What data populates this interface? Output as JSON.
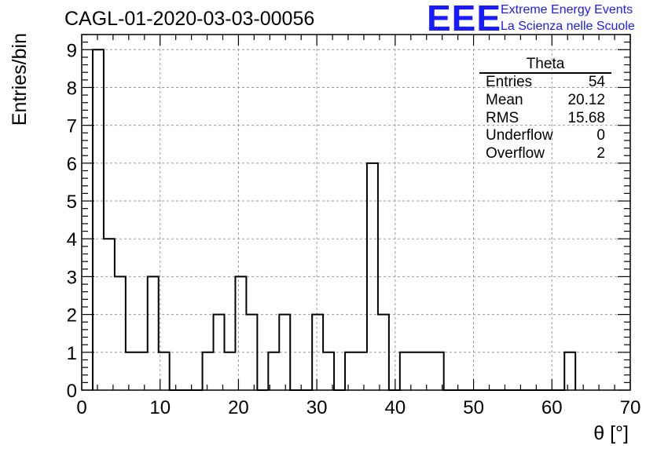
{
  "header": {
    "title": "CAGL-01-2020-03-03-00056",
    "logo_mark": "EEE",
    "logo_line1": "Extreme Energy Events",
    "logo_line2": "La Scienza nelle Scuole",
    "logo_color": "#1a1aff"
  },
  "stats_box": {
    "title": "Theta",
    "rows": [
      {
        "label": "Entries",
        "value": "54"
      },
      {
        "label": "Mean",
        "value": "20.12"
      },
      {
        "label": "RMS",
        "value": "15.68"
      },
      {
        "label": "Underflow",
        "value": "0"
      },
      {
        "label": "Overflow",
        "value": "2"
      }
    ]
  },
  "chart_data": {
    "type": "histogram",
    "title": "CAGL-01-2020-03-03-00056",
    "xlabel": "θ [°]",
    "ylabel": "Entries/bin",
    "xlim": [
      0,
      70
    ],
    "ylim": [
      0,
      9.4
    ],
    "x_ticks": [
      0,
      10,
      20,
      30,
      40,
      50,
      60,
      70
    ],
    "y_ticks": [
      0,
      1,
      2,
      3,
      4,
      5,
      6,
      7,
      8,
      9
    ],
    "grid": true,
    "bin_edges": [
      1.4,
      2.8,
      4.2,
      5.6,
      7.0,
      8.4,
      9.8,
      11.2,
      12.6,
      14.0,
      15.4,
      16.8,
      18.2,
      19.6,
      21.0,
      22.4,
      23.8,
      25.2,
      26.6,
      28.0,
      29.4,
      30.8,
      32.2,
      33.6,
      35.0,
      36.4,
      37.8,
      39.2,
      40.6,
      42.0,
      43.4,
      44.8,
      46.2,
      47.6,
      49.0,
      50.4,
      51.8,
      53.2,
      54.6,
      56.0,
      57.4,
      58.8,
      60.2,
      61.6,
      63.0
    ],
    "counts": [
      9,
      4,
      3,
      1,
      1,
      3,
      1,
      0,
      0,
      0,
      1,
      2,
      1,
      3,
      2,
      0,
      1,
      2,
      0,
      0,
      2,
      1,
      0,
      1,
      1,
      6,
      2,
      0,
      1,
      1,
      1,
      1,
      0,
      0,
      0,
      0,
      0,
      0,
      0,
      0,
      0,
      0,
      0,
      1
    ]
  }
}
